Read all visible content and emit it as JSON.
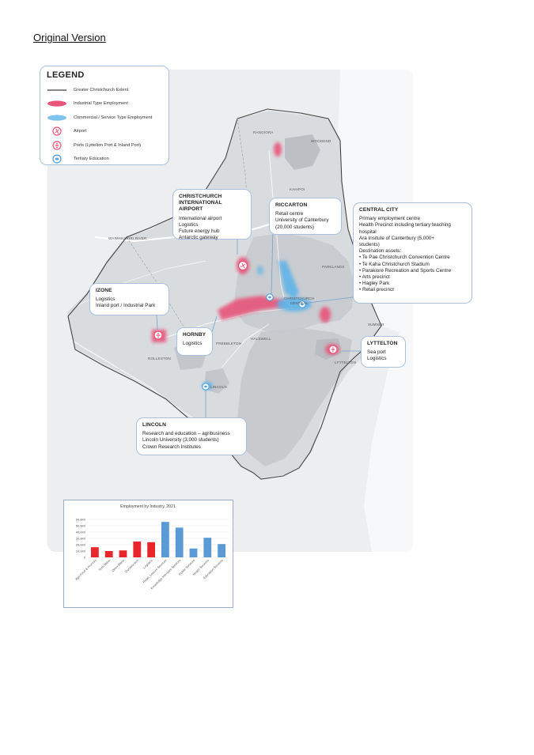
{
  "heading": "Original Version",
  "legend": {
    "title": "LEGEND",
    "items": [
      {
        "label": "Greater Christchurch Extent",
        "icon": "boundary-line-icon"
      },
      {
        "label": "Industrial Type Employment",
        "icon": "industrial-swatch-icon",
        "color": "#e8547a"
      },
      {
        "label": "Commercial / Service Type Employment",
        "icon": "commercial-swatch-icon",
        "color": "#5fb3e8"
      },
      {
        "label": "Airport",
        "icon": "airport-icon"
      },
      {
        "label": "Ports (Lyttelton Port & Inland Port)",
        "icon": "port-icon"
      },
      {
        "label": "Tertiary Education",
        "icon": "education-icon"
      }
    ]
  },
  "places": {
    "rangiora": "RANGIORA",
    "woodend": "WOODEND",
    "kaiapoi": "KAIAPOI",
    "waimakariri": "WAIMAKARIRI RIVER",
    "parklands": "PARKLANDS",
    "christchurch_central": "CHRISTCHURCH CENTRAL",
    "sumner": "SUMNER",
    "halswell": "HALSWELL",
    "prebbleton": "PREBBLETON",
    "rolleston": "ROLLESTON",
    "lyttelton": "LYTTELTON",
    "lincoln": "LINCOLN"
  },
  "callouts": {
    "airport": {
      "title": "CHRISTCHURCH INTERNATIONAL AIRPORT",
      "lines": [
        "International airport",
        "Logistics",
        "Future energy hub",
        "Antarctic gateway"
      ]
    },
    "riccarton": {
      "title": "RICCARTON",
      "lines": [
        "Retail centre",
        "University of Canterbury",
        "(20,000 students)"
      ]
    },
    "central_city": {
      "title": "CENTRAL CITY",
      "lines": [
        "Primary employment centre",
        "Health Precinct including tertiary teaching",
        "hospital",
        "Ara Insitute of Canterbury (5,000+",
        "students)",
        "Destination assets:",
        "• Te Pae Christchurch Convention Centre",
        "• Te Kaha Christchurch Stadium",
        "• Parakiore Recreation and Sports Centre",
        "• Arts precinct",
        "• Hagley Park",
        "• Retail precinct"
      ]
    },
    "izone": {
      "title": "IZONE",
      "lines": [
        "Logistics",
        "Inland port / Industrial Park"
      ]
    },
    "hornby": {
      "title": "HORNBY",
      "lines": [
        "Logistics"
      ]
    },
    "lyttelton": {
      "title": "LYTTELTON",
      "lines": [
        "Sea port",
        "Logistics"
      ]
    },
    "lincoln": {
      "title": "LINCOLN",
      "lines": [
        "Research and education – agribusiness",
        "Lincoln University (3,000 students)",
        "Crown Research Institutes"
      ]
    }
  },
  "chart_data": {
    "type": "bar",
    "title": "Employment by Industry, 2021",
    "categories": [
      "Agri Food & Process",
      "Tech Manu",
      "Other Manu",
      "Construction",
      "Logistics",
      "Retail, Leisure Services",
      "Knowledge Intensive Services",
      "Public Services",
      "Health Services",
      "Education Services"
    ],
    "values": [
      16000,
      10000,
      11000,
      25000,
      24000,
      56000,
      47000,
      14000,
      31000,
      21000
    ],
    "colors": [
      "#e8262c",
      "#e8262c",
      "#e8262c",
      "#e8262c",
      "#e8262c",
      "#5b9bd5",
      "#5b9bd5",
      "#5b9bd5",
      "#5b9bd5",
      "#5b9bd5"
    ],
    "yticks": [
      "0",
      "10,000",
      "20,000",
      "30,000",
      "40,000",
      "50,000",
      "60,000"
    ],
    "ylim": [
      0,
      60000
    ],
    "grid": true
  }
}
